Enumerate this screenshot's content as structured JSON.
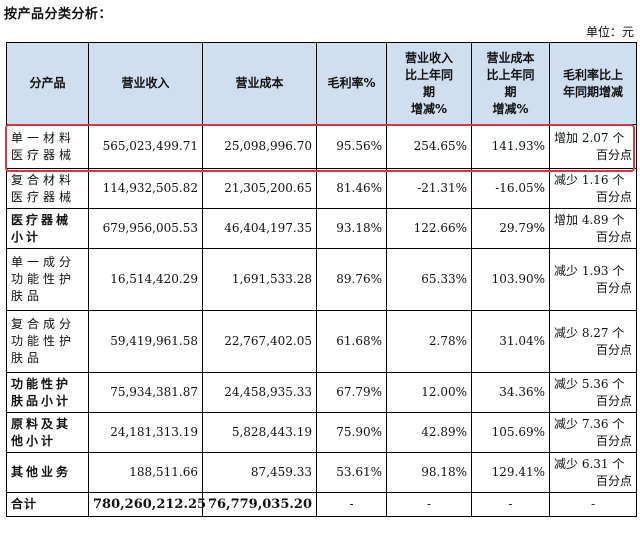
{
  "title": "按产品分类分析：",
  "unit": "单位：元",
  "headers": [
    "分产品",
    "营业收入",
    "营业成本",
    "毛利率%",
    "营业收入比上年同期增减%",
    "营业成本比上年同期增减%",
    "毛利率比上年同期增减"
  ],
  "header_lines": {
    "h5": [
      "营业收入",
      "比上年同",
      "期",
      "增减%"
    ],
    "h6": [
      "营业成本",
      "比上年同",
      "期",
      "增减%"
    ],
    "h7": [
      "毛利率比上",
      "年同期增减"
    ]
  },
  "rows": [
    {
      "name_lines": [
        "单一材料",
        "医疗器械"
      ],
      "bold": false,
      "revenue": "565,023,499.71",
      "cost": "25,098,996.70",
      "margin": "95.56%",
      "rev_chg": "254.65%",
      "cost_chg": "141.93%",
      "margin_chg": [
        "增加 2.07 个",
        "百分点"
      ]
    },
    {
      "name_lines": [
        "复合材料",
        "医疗器械"
      ],
      "bold": false,
      "revenue": "114,932,505.82",
      "cost": "21,305,200.65",
      "margin": "81.46%",
      "rev_chg": "-21.31%",
      "cost_chg": "-16.05%",
      "margin_chg": [
        "减少 1.16 个",
        "百分点"
      ]
    },
    {
      "name_lines": [
        "医疗器械",
        "小计"
      ],
      "bold": true,
      "revenue": "679,956,005.53",
      "cost": "46,404,197.35",
      "margin": "93.18%",
      "rev_chg": "122.66%",
      "cost_chg": "29.79%",
      "margin_chg": [
        "增加 4.89 个",
        "百分点"
      ]
    },
    {
      "name_lines": [
        "单一成分",
        "功能性护",
        "肤品"
      ],
      "bold": false,
      "revenue": "16,514,420.29",
      "cost": "1,691,533.28",
      "margin": "89.76%",
      "rev_chg": "65.33%",
      "cost_chg": "103.90%",
      "margin_chg": [
        "减少 1.93 个",
        "百分点"
      ]
    },
    {
      "name_lines": [
        "复合成分",
        "功能性护",
        "肤品"
      ],
      "bold": false,
      "revenue": "59,419,961.58",
      "cost": "22,767,402.05",
      "margin": "61.68%",
      "rev_chg": "2.78%",
      "cost_chg": "31.04%",
      "margin_chg": [
        "减少 8.27 个",
        "百分点"
      ]
    },
    {
      "name_lines": [
        "功能性护",
        "肤品小计"
      ],
      "bold": true,
      "revenue": "75,934,381.87",
      "cost": "24,458,935.33",
      "margin": "67.79%",
      "rev_chg": "12.00%",
      "cost_chg": "34.36%",
      "margin_chg": [
        "减少 5.36 个",
        "百分点"
      ]
    },
    {
      "name_lines": [
        "原料及其",
        "他小计"
      ],
      "bold": true,
      "revenue": "24,181,313.19",
      "cost": "5,828,443.19",
      "margin": "75.90%",
      "rev_chg": "42.89%",
      "cost_chg": "105.69%",
      "margin_chg": [
        "减少 7.36 个",
        "百分点"
      ]
    },
    {
      "name_lines": [
        "其他业务"
      ],
      "bold": true,
      "revenue": "188,511.66",
      "cost": "87,459.33",
      "margin": "53.61%",
      "rev_chg": "98.18%",
      "cost_chg": "129.41%",
      "margin_chg": [
        "减少 6.31 个",
        "百分点"
      ]
    },
    {
      "name_lines": [
        "合计"
      ],
      "bold": true,
      "total": true,
      "revenue": "780,260,212.25",
      "cost": "76,779,035.20",
      "margin": "-",
      "rev_chg": "-",
      "cost_chg": "-",
      "margin_chg": [
        "-"
      ]
    }
  ],
  "colors": {
    "header_bg": "#cfdff0",
    "highlight": "#e0323c"
  }
}
